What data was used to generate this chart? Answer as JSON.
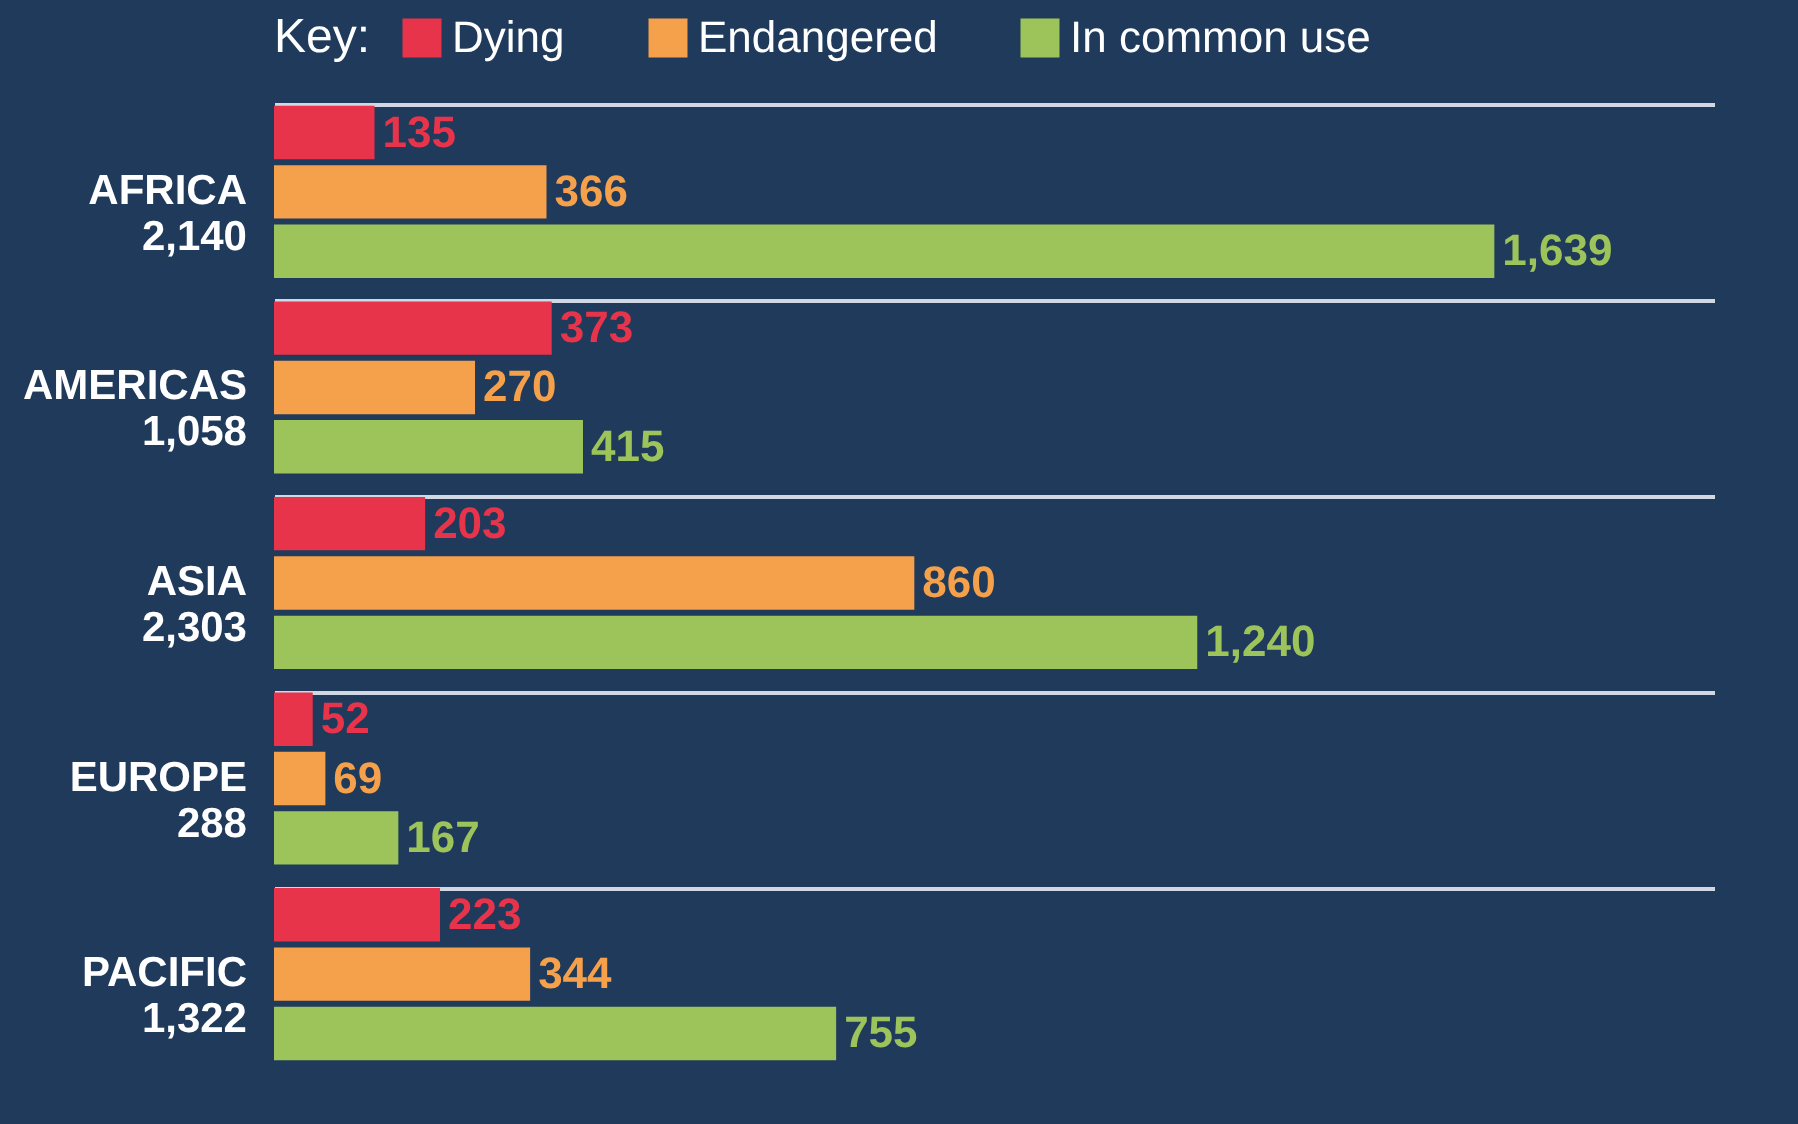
{
  "chart_data": {
    "type": "bar",
    "orientation": "horizontal",
    "legend_title": "Key:",
    "legend": "top",
    "categories": [
      "AFRICA",
      "AMERICAS",
      "ASIA",
      "EUROPE",
      "PACIFIC"
    ],
    "totals": [
      "2,140",
      "1,058",
      "2,303",
      "288",
      "1,322"
    ],
    "series": [
      {
        "name": "Dying",
        "color": "#e8344a",
        "values": [
          135,
          373,
          203,
          52,
          223
        ],
        "value_labels": [
          "135",
          "373",
          "203",
          "52",
          "223"
        ]
      },
      {
        "name": "Endangered",
        "color": "#f5a04a",
        "values": [
          366,
          270,
          860,
          69,
          344
        ],
        "value_labels": [
          "366",
          "270",
          "860",
          "69",
          "344"
        ]
      },
      {
        "name": "In common use",
        "color": "#9cc45a",
        "values": [
          1639,
          415,
          1240,
          167,
          755
        ],
        "value_labels": [
          "1,639",
          "415",
          "1,240",
          "167",
          "755"
        ]
      }
    ],
    "grid": "y"
  }
}
